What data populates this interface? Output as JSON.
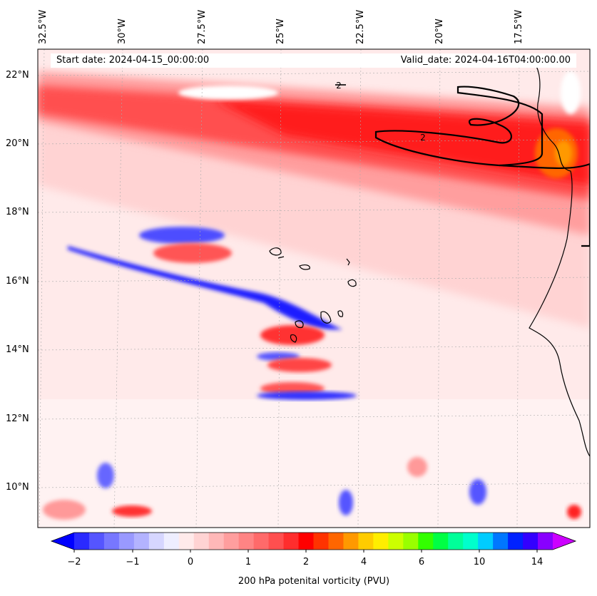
{
  "header": {
    "start_label": "Start date: 2024-04-15_00:00:00",
    "valid_label": "Valid_date: 2024-04-16T04:00:00.00"
  },
  "axes": {
    "lon_labels": [
      "32.5°W",
      "30°W",
      "27.5°W",
      "25°W",
      "22.5°W",
      "20°W",
      "17.5°W"
    ],
    "lat_labels": [
      "22°N",
      "20°N",
      "18°N",
      "16°N",
      "14°N",
      "12°N",
      "10°N"
    ]
  },
  "contour_labels": [
    "2",
    "2"
  ],
  "colorbar": {
    "title": "200 hPa potenital vorticity (PVU)",
    "ticks": [
      "−2",
      "−1",
      "0",
      "1",
      "2",
      "4",
      "6",
      "10",
      "14"
    ],
    "colors": [
      "#0000ff",
      "#2a2aff",
      "#5555ff",
      "#7777ff",
      "#9999ff",
      "#b3b3ff",
      "#d6d6ff",
      "#eeeeff",
      "#ffeaea",
      "#ffd3d3",
      "#ffb8b8",
      "#ff9e9e",
      "#ff8484",
      "#ff6a6a",
      "#ff4f4f",
      "#ff2d2d",
      "#ff0000",
      "#ff3300",
      "#ff6600",
      "#ff9900",
      "#ffcc00",
      "#ffee00",
      "#ccff00",
      "#99ff00",
      "#33ff00",
      "#00ff44",
      "#00ff99",
      "#00ffcc",
      "#00ccff",
      "#0077ff",
      "#0022ff",
      "#3300ff",
      "#8800ff",
      "#cc00ff"
    ]
  }
}
